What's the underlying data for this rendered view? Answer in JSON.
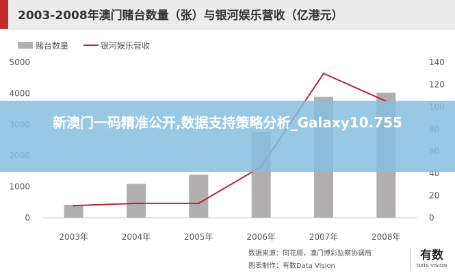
{
  "header": {
    "title": "2003-2008年澳门赌台数量（张）与银河娱乐营收（亿港元）"
  },
  "banner": {
    "text": "新澳门一码精准公开,数据支持策略分析_Galaxy10.755"
  },
  "source": {
    "line1": "数据来源：同花顺，澳门博彩监察协调局",
    "line2": "图表制作：有数Data Vision"
  },
  "logo": {
    "main": "有数",
    "sub": "DATA VISION"
  },
  "colors": {
    "bar": "#b0aeae",
    "line": "#b5272d",
    "accent": "#c22a2a",
    "banner": "#87bee1"
  },
  "chart_data": {
    "type": "bar",
    "categories": [
      "2003年",
      "2004年",
      "2005年",
      "2006年",
      "2007年",
      "2008年"
    ],
    "series": [
      {
        "name": "赌台数量",
        "type": "bar",
        "axis": "left",
        "values": [
          420,
          1090,
          1390,
          2760,
          3890,
          4020
        ]
      },
      {
        "name": "银河娱乐营收",
        "type": "line",
        "axis": "right",
        "values": [
          11,
          13,
          13,
          46,
          130,
          105
        ]
      }
    ],
    "y_left": {
      "min": 0,
      "max": 5000,
      "ticks": [
        0,
        1000,
        2000,
        3000,
        4000,
        5000
      ]
    },
    "y_right": {
      "min": 0,
      "max": 140,
      "ticks": [
        0,
        20,
        40,
        60,
        80,
        100,
        120,
        140
      ]
    },
    "grid": false,
    "legend_position": "top-left"
  }
}
